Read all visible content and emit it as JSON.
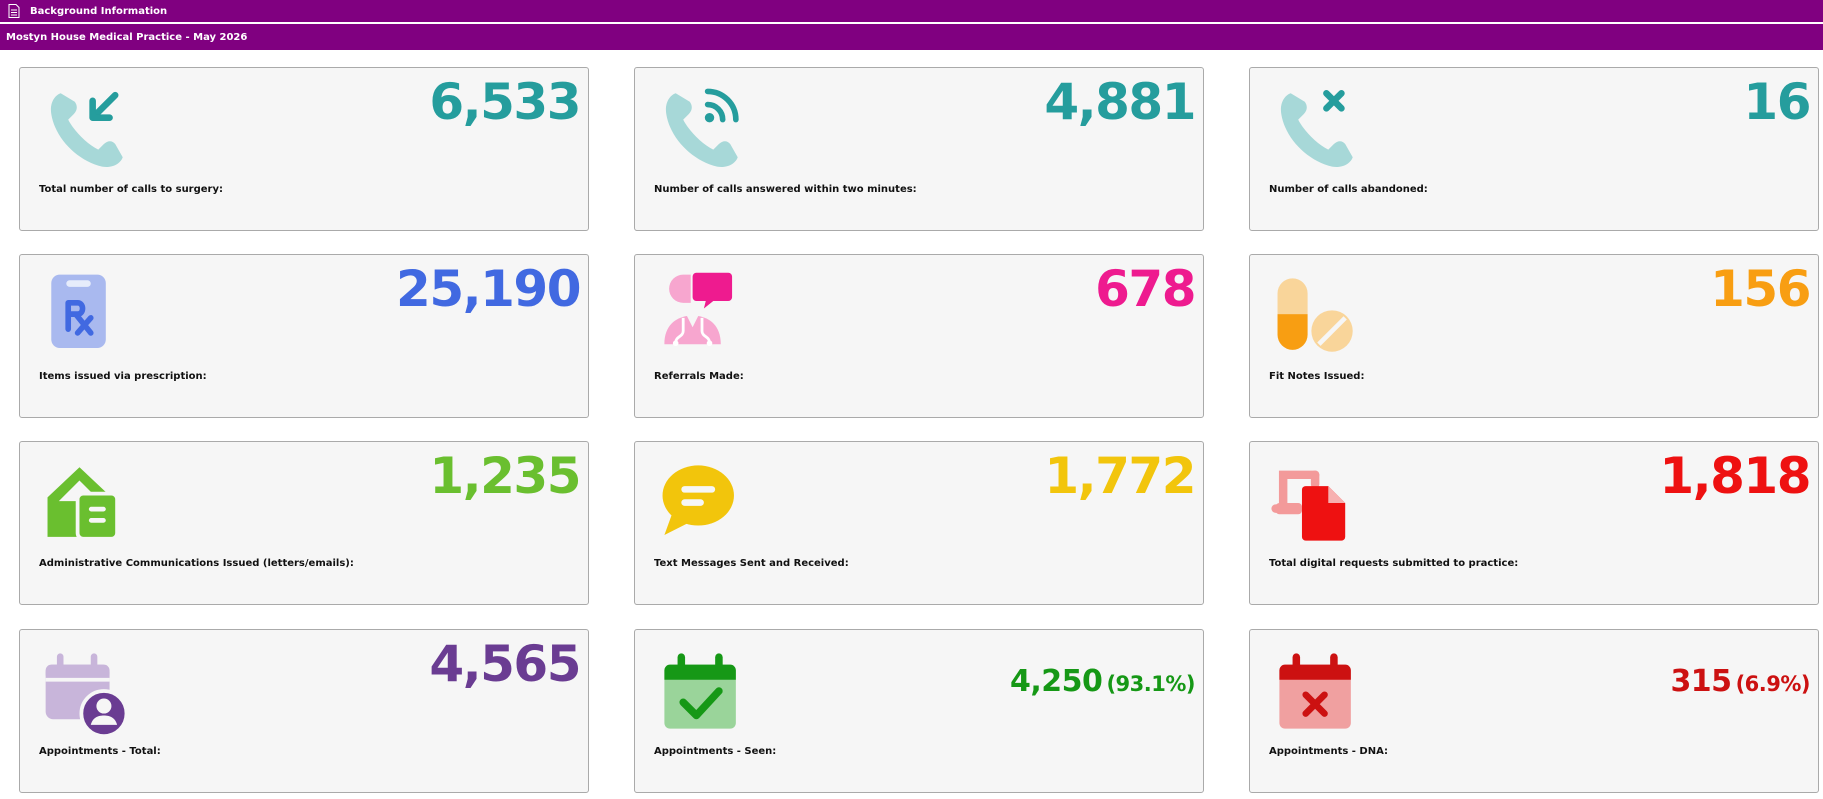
{
  "header": {
    "title": "Background Information",
    "subtitle": "Mostyn House Medical Practice - May 2026",
    "color": "#800080"
  },
  "cards": [
    {
      "value": "6,533",
      "label": "Total number of calls to surgery:",
      "color": "#259d9d",
      "icon": "phone-incoming-icon"
    },
    {
      "value": "4,881",
      "label": "Number of calls answered within two minutes:",
      "color": "#259d9d",
      "icon": "phone-signal-icon"
    },
    {
      "value": "16",
      "label": "Number of calls abandoned:",
      "color": "#259d9d",
      "icon": "phone-missed-icon"
    },
    {
      "value": "25,190",
      "label": "Items issued via prescription:",
      "color": "#4169e1",
      "icon": "prescription-clipboard-icon"
    },
    {
      "value": "678",
      "label": "Referrals Made:",
      "color": "#ee1b8f",
      "icon": "doctor-referral-icon"
    },
    {
      "value": "156",
      "label": "Fit Notes Issued:",
      "color": "#f89e12",
      "icon": "pills-icon"
    },
    {
      "value": "1,235",
      "label": "Administrative Communications Issued (letters/emails):",
      "color": "#6abf2f",
      "icon": "envelope-letter-icon"
    },
    {
      "value": "1,772",
      "label": "Text Messages Sent and Received:",
      "color": "#f2c50c",
      "icon": "chat-bubble-icon"
    },
    {
      "value": "1,818",
      "label": "Total digital requests submitted to practice:",
      "color": "#ee1111",
      "icon": "digital-request-icon"
    },
    {
      "value": "4,565",
      "label": "Appointments - Total:",
      "color": "#6a3c92",
      "icon": "calendar-user-icon"
    },
    {
      "value": "4,250",
      "pct": "(93.1%)",
      "label": "Appointments - Seen:",
      "color": "#169816",
      "icon": "calendar-check-icon"
    },
    {
      "value": "315",
      "pct": "(6.9%)",
      "label": "Appointments - DNA:",
      "color": "#cc1111",
      "icon": "calendar-cross-icon"
    }
  ]
}
